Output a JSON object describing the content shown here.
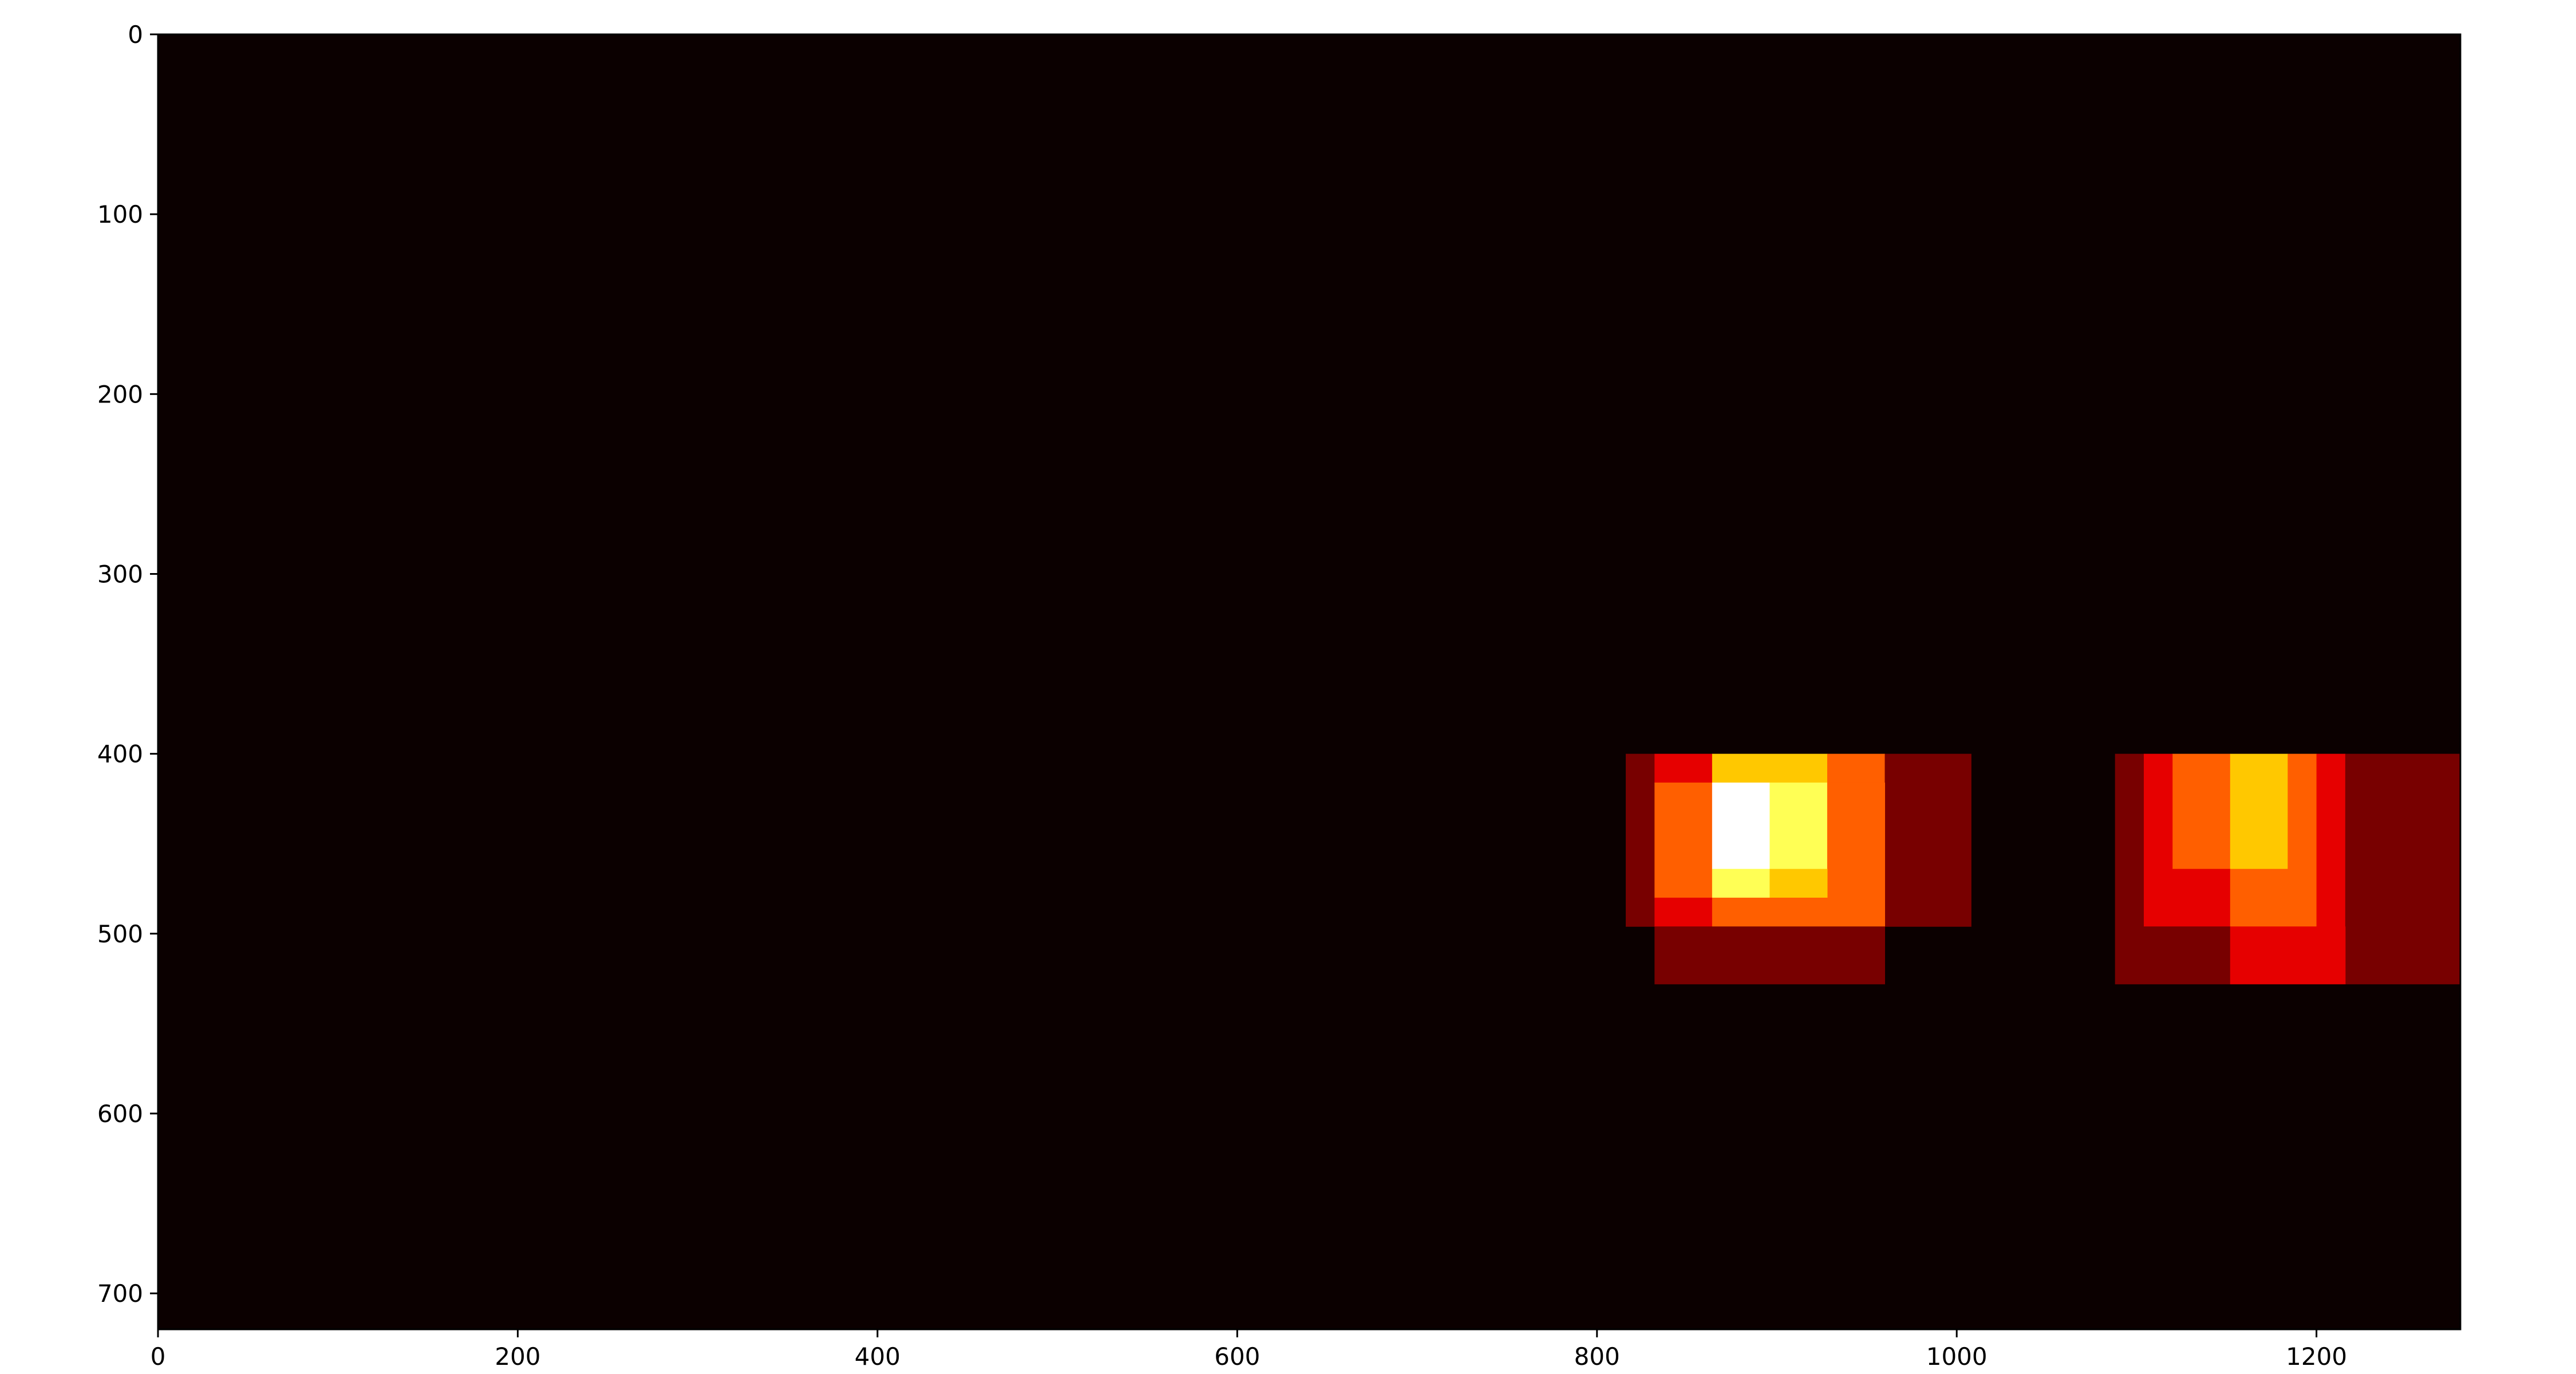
{
  "chart_data": {
    "type": "heatmap",
    "title": "",
    "xlabel": "",
    "ylabel": "",
    "xlim": [
      0,
      1280
    ],
    "ylim": [
      720,
      0
    ],
    "y_axis_inverted": true,
    "grid": false,
    "colormap": "hot",
    "value_range": [
      0,
      6
    ],
    "colors": {
      "background": "#0b0000",
      "levels": [
        "#0b0000",
        "#780000",
        "#e60000",
        "#ff5f00",
        "#ffc800",
        "#ffff55",
        "#ffffff"
      ]
    },
    "x_ticks": [
      0,
      200,
      400,
      600,
      800,
      1000,
      1200
    ],
    "y_ticks": [
      0,
      100,
      200,
      300,
      400,
      500,
      600,
      700
    ],
    "x_tick_labels": [
      "0",
      "200",
      "400",
      "600",
      "800",
      "1000",
      "1200"
    ],
    "y_tick_labels": [
      "0",
      "100",
      "200",
      "300",
      "400",
      "500",
      "600",
      "700"
    ],
    "cells": [
      {
        "x0": 816,
        "x1": 832,
        "y0": 400,
        "y1": 496,
        "value": 1
      },
      {
        "x0": 832,
        "x1": 864,
        "y0": 400,
        "y1": 416,
        "value": 2
      },
      {
        "x0": 864,
        "x1": 928,
        "y0": 400,
        "y1": 416,
        "value": 4
      },
      {
        "x0": 928,
        "x1": 960,
        "y0": 400,
        "y1": 416,
        "value": 3
      },
      {
        "x0": 960,
        "x1": 1008,
        "y0": 400,
        "y1": 496,
        "value": 1
      },
      {
        "x0": 832,
        "x1": 864,
        "y0": 416,
        "y1": 480,
        "value": 3
      },
      {
        "x0": 864,
        "x1": 896,
        "y0": 416,
        "y1": 464,
        "value": 6
      },
      {
        "x0": 896,
        "x1": 928,
        "y0": 416,
        "y1": 464,
        "value": 5
      },
      {
        "x0": 928,
        "x1": 960,
        "y0": 416,
        "y1": 496,
        "value": 3
      },
      {
        "x0": 864,
        "x1": 896,
        "y0": 464,
        "y1": 480,
        "value": 5
      },
      {
        "x0": 896,
        "x1": 928,
        "y0": 464,
        "y1": 480,
        "value": 4
      },
      {
        "x0": 832,
        "x1": 864,
        "y0": 480,
        "y1": 496,
        "value": 2
      },
      {
        "x0": 864,
        "x1": 928,
        "y0": 480,
        "y1": 496,
        "value": 3
      },
      {
        "x0": 832,
        "x1": 960,
        "y0": 496,
        "y1": 528,
        "value": 1
      },
      {
        "x0": 1088,
        "x1": 1104,
        "y0": 400,
        "y1": 528,
        "value": 1
      },
      {
        "x0": 1104,
        "x1": 1120,
        "y0": 400,
        "y1": 496,
        "value": 2
      },
      {
        "x0": 1120,
        "x1": 1152,
        "y0": 400,
        "y1": 464,
        "value": 3
      },
      {
        "x0": 1152,
        "x1": 1184,
        "y0": 400,
        "y1": 464,
        "value": 4
      },
      {
        "x0": 1184,
        "x1": 1200,
        "y0": 400,
        "y1": 496,
        "value": 3
      },
      {
        "x0": 1200,
        "x1": 1216,
        "y0": 400,
        "y1": 496,
        "value": 2
      },
      {
        "x0": 1216,
        "x1": 1280,
        "y0": 400,
        "y1": 528,
        "value": 1
      },
      {
        "x0": 1120,
        "x1": 1152,
        "y0": 464,
        "y1": 496,
        "value": 2
      },
      {
        "x0": 1152,
        "x1": 1184,
        "y0": 464,
        "y1": 496,
        "value": 3
      },
      {
        "x0": 1104,
        "x1": 1152,
        "y0": 496,
        "y1": 528,
        "value": 1
      },
      {
        "x0": 1152,
        "x1": 1216,
        "y0": 496,
        "y1": 528,
        "value": 2
      }
    ]
  }
}
